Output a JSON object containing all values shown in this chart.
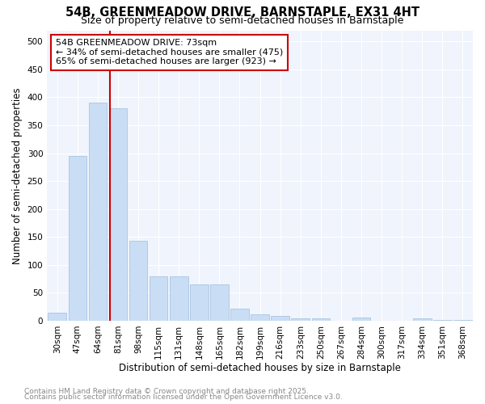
{
  "title_line1": "54B, GREENMEADOW DRIVE, BARNSTAPLE, EX31 4HT",
  "title_line2": "Size of property relative to semi-detached houses in Barnstaple",
  "xlabel": "Distribution of semi-detached houses by size in Barnstaple",
  "ylabel": "Number of semi-detached properties",
  "bins": [
    "30sqm",
    "47sqm",
    "64sqm",
    "81sqm",
    "98sqm",
    "115sqm",
    "131sqm",
    "148sqm",
    "165sqm",
    "182sqm",
    "199sqm",
    "216sqm",
    "233sqm",
    "250sqm",
    "267sqm",
    "284sqm",
    "300sqm",
    "317sqm",
    "334sqm",
    "351sqm",
    "368sqm"
  ],
  "values": [
    15,
    295,
    390,
    380,
    143,
    80,
    80,
    65,
    65,
    22,
    12,
    8,
    5,
    5,
    0,
    6,
    0,
    0,
    4,
    2,
    1
  ],
  "bar_color": "#c9ddf5",
  "bar_edge_color": "#a0bedd",
  "vline_x_index": 3,
  "vline_color": "#cc0000",
  "annotation_line1": "54B GREENMEADOW DRIVE: 73sqm",
  "annotation_line2": "← 34% of semi-detached houses are smaller (475)",
  "annotation_line3": "65% of semi-detached houses are larger (923) →",
  "annotation_box_color": "#cc0000",
  "annotation_box_bg": "#ffffff",
  "ylim": [
    0,
    520
  ],
  "yticks": [
    0,
    50,
    100,
    150,
    200,
    250,
    300,
    350,
    400,
    450,
    500
  ],
  "bg_color": "#ffffff",
  "plot_bg_color": "#f0f4fc",
  "grid_color": "#ffffff",
  "footer_line1": "Contains HM Land Registry data © Crown copyright and database right 2025.",
  "footer_line2": "Contains public sector information licensed under the Open Government Licence v3.0.",
  "footer_color": "#888888",
  "title_fontsize": 10.5,
  "subtitle_fontsize": 9,
  "axis_label_fontsize": 8.5,
  "tick_fontsize": 7.5,
  "annotation_fontsize": 8,
  "footer_fontsize": 6.5
}
